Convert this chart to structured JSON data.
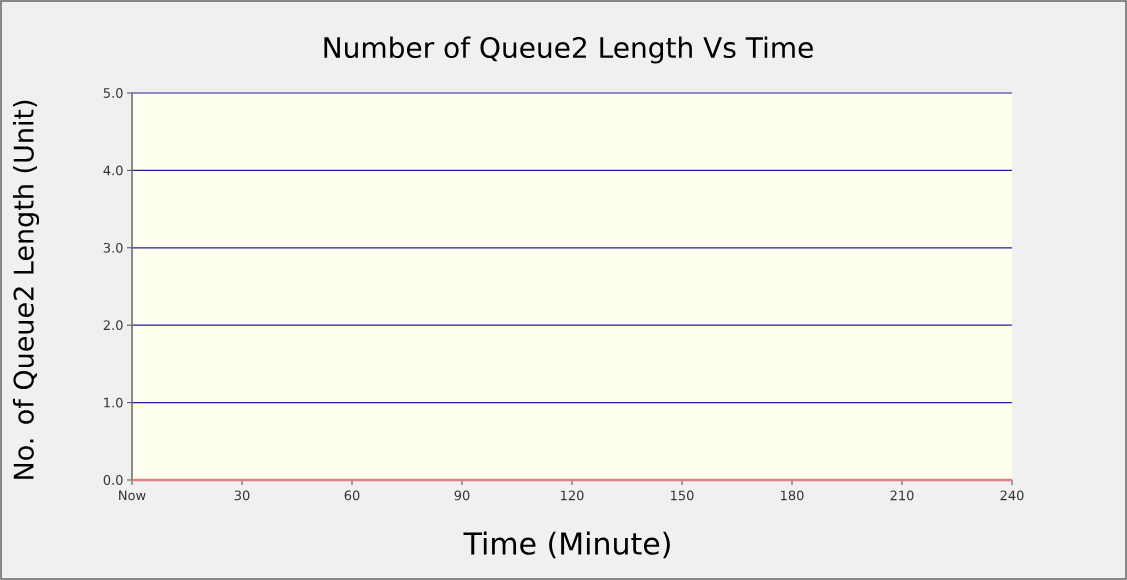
{
  "chart_data": {
    "type": "line",
    "title": "Number of Queue2 Length Vs Time",
    "xlabel": "Time (Minute)",
    "ylabel": "No. of Queue2 Length (Unit)",
    "x": [
      0,
      240
    ],
    "series": [
      {
        "color": "#e08080",
        "values": [
          0,
          0
        ]
      }
    ],
    "xlim": [
      0,
      240
    ],
    "ylim": [
      0,
      5
    ],
    "xticks": [
      {
        "value": 0,
        "label": "Now"
      },
      30,
      60,
      90,
      120,
      150,
      180,
      210,
      240
    ],
    "yticks": [
      {
        "value": 0,
        "label": "0.0"
      },
      {
        "value": 1,
        "label": "1.0"
      },
      {
        "value": 2,
        "label": "2.0"
      },
      {
        "value": 3,
        "label": "3.0"
      },
      {
        "value": 4,
        "label": "4.0"
      },
      {
        "value": 5,
        "label": "5.0"
      }
    ],
    "grid": "y",
    "marker": "none",
    "line_style": "solid"
  }
}
